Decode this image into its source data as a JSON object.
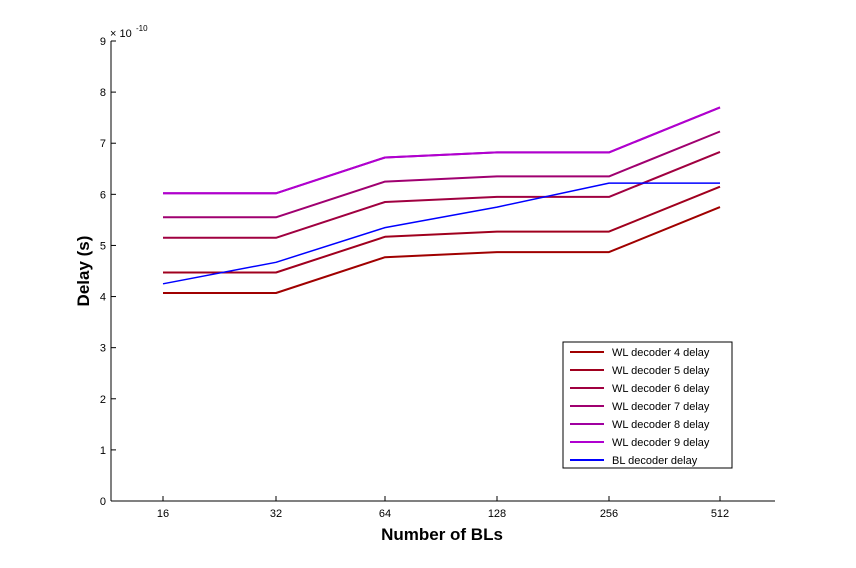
{
  "chart_data": {
    "type": "line",
    "xlabel": "Number of BLs",
    "ylabel": "Delay (s)",
    "y_multiplier_label": "× 10",
    "y_multiplier_exponent": "-10",
    "categories": [
      "16",
      "32",
      "64",
      "128",
      "256",
      "512"
    ],
    "y_ticks": [
      "0",
      "1",
      "2",
      "3",
      "4",
      "5",
      "6",
      "7",
      "8",
      "9"
    ],
    "ylim": [
      0,
      9
    ],
    "grid": false,
    "legend_position": "bottom-right",
    "series": [
      {
        "name": "WL decoder 4 delay",
        "color": "#a00000",
        "values": [
          4.07,
          4.07,
          4.77,
          4.87,
          4.87,
          5.75
        ]
      },
      {
        "name": "WL decoder 5 delay",
        "color": "#a0001e",
        "values": [
          4.47,
          4.47,
          5.17,
          5.27,
          5.27,
          6.15
        ]
      },
      {
        "name": "WL decoder 6 delay",
        "color": "#a00040",
        "values": [
          5.15,
          5.15,
          5.85,
          5.95,
          5.95,
          6.83
        ]
      },
      {
        "name": "WL decoder 7 delay",
        "color": "#a00070",
        "values": [
          5.55,
          5.55,
          6.25,
          6.35,
          6.35,
          7.23
        ]
      },
      {
        "name": "WL decoder 8 delay",
        "color": "#a000a0",
        "values": [
          6.02,
          6.02,
          6.72,
          6.82,
          6.82,
          7.7
        ]
      },
      {
        "name": "WL decoder 9 delay",
        "color": "#b000d0",
        "values": [
          6.02,
          6.02,
          6.72,
          6.82,
          6.82,
          7.7
        ]
      },
      {
        "name": "BL decoder delay",
        "color": "#0000ff",
        "values": [
          4.25,
          4.67,
          5.35,
          5.75,
          6.22,
          6.22
        ]
      }
    ]
  }
}
